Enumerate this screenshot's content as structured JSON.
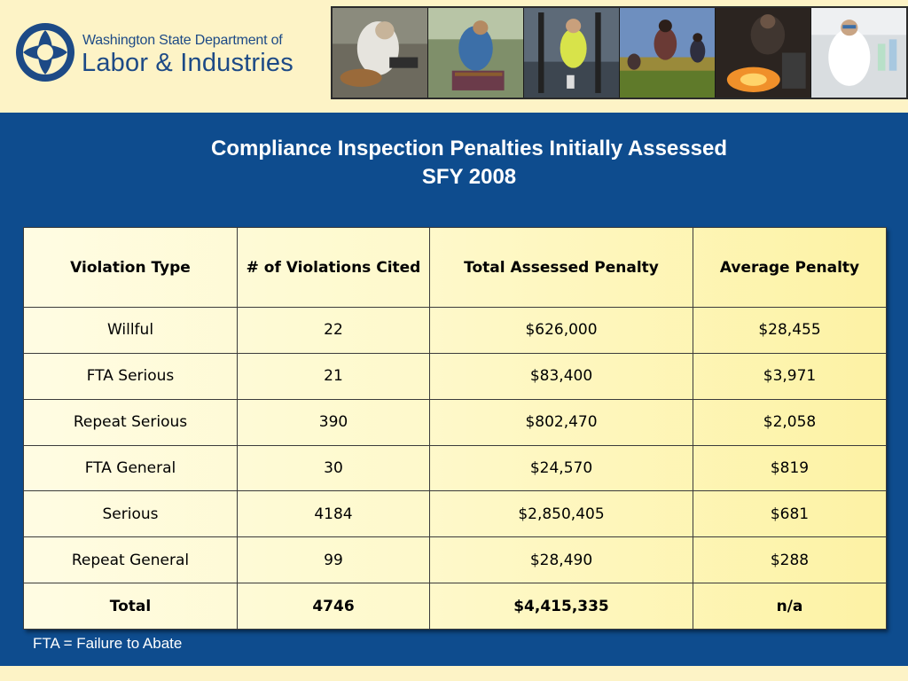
{
  "header": {
    "logo_line1": "Washington State Department of",
    "logo_line2": "Labor & Industries",
    "photos": [
      "worker-grinding-photo",
      "worker-harvest-photo",
      "worker-vest-photo",
      "field-workers-photo",
      "worker-welding-photo",
      "lab-worker-photo"
    ]
  },
  "title": {
    "line1": "Compliance Inspection Penalties Initially Assessed",
    "line2": "SFY 2008"
  },
  "table": {
    "headers": [
      "Violation Type",
      "# of Violations Cited",
      "Total Assessed Penalty",
      "Average Penalty"
    ],
    "rows": [
      [
        "Willful",
        "22",
        "$626,000",
        "$28,455"
      ],
      [
        "FTA Serious",
        "21",
        "$83,400",
        "$3,971"
      ],
      [
        "Repeat Serious",
        "390",
        "$802,470",
        "$2,058"
      ],
      [
        "FTA General",
        "30",
        "$24,570",
        "$819"
      ],
      [
        "Serious",
        "4184",
        "$2,850,405",
        "$681"
      ],
      [
        "Repeat General",
        "99",
        "$28,490",
        "$288"
      ]
    ],
    "total": [
      "Total",
      "4746",
      "$4,415,335",
      "n/a"
    ]
  },
  "footnote": "FTA = Failure to Abate",
  "colors": {
    "header_bg": "#fdf3c6",
    "main_bg": "#0e4c8e",
    "logo_blue": "#1d4a86",
    "table_yellow": "#fef9cc"
  }
}
